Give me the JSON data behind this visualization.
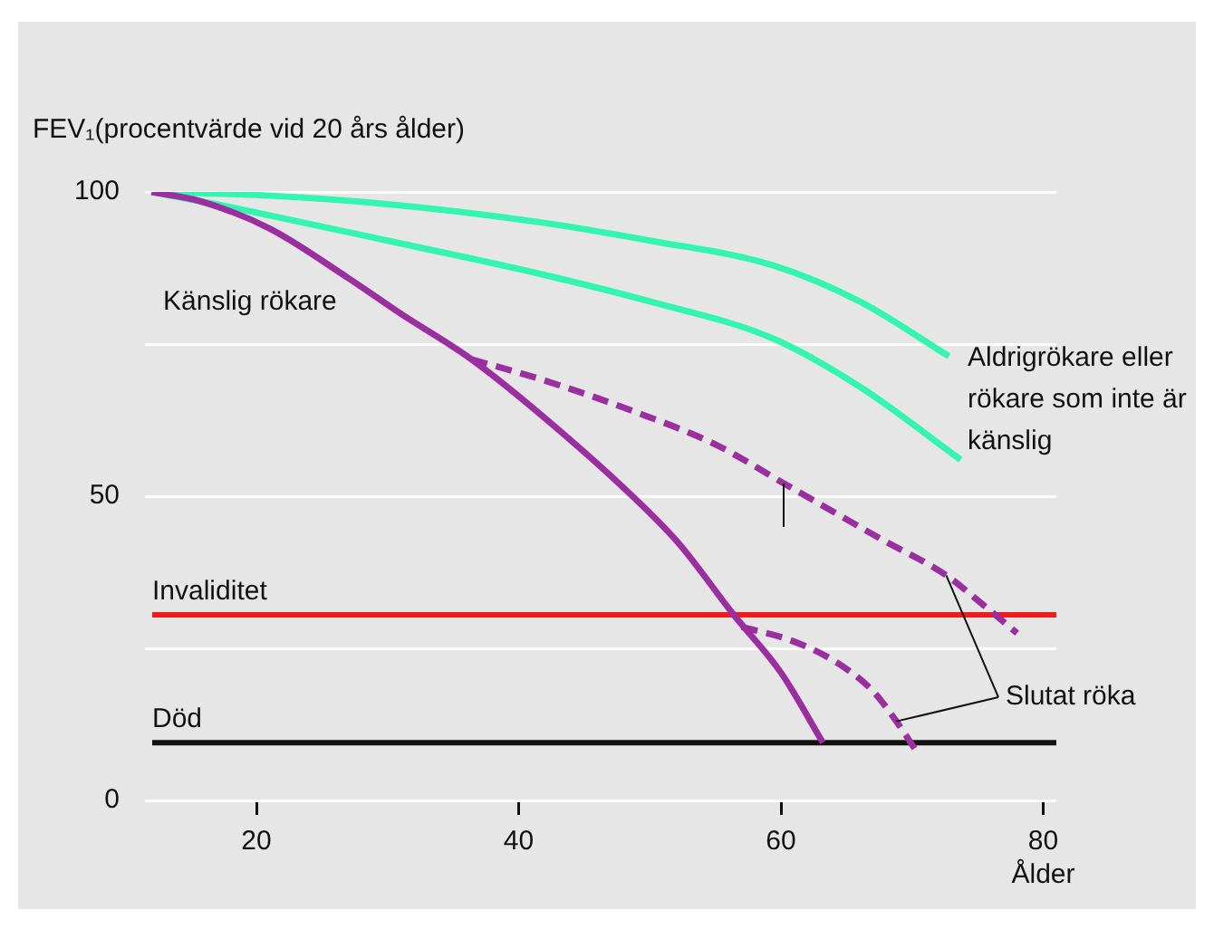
{
  "chart_data": {
    "type": "line",
    "ylabel": "FEV₁(procentvärde vid 20 års ålder)",
    "xlabel": "Ålder",
    "xlim": [
      11.5,
      81
    ],
    "xticks": [
      20,
      40,
      60,
      80
    ],
    "ylim": [
      0,
      100
    ],
    "yticks": [
      0,
      {
        "value": 25,
        "label": null
      },
      50,
      {
        "value": 75,
        "label": null
      },
      100
    ],
    "grid": "y",
    "legend": false,
    "marker": "none",
    "series": [
      {
        "color": "#33f5b0",
        "line_style": "solid",
        "x": [
          12,
          20,
          30,
          41.7,
          50,
          59.3,
          66,
          72.8
        ],
        "values": [
          100,
          99.5,
          98,
          95,
          92,
          88,
          82,
          73
        ]
      },
      {
        "color": "#33f5b0",
        "line_style": "solid",
        "x": [
          12,
          18,
          30,
          41.7,
          50,
          59.3,
          66,
          73.7
        ],
        "values": [
          100,
          97.5,
          92,
          86.5,
          82,
          76,
          68,
          56
        ]
      },
      {
        "color": "#9b2f9f",
        "line_style": "solid",
        "x": [
          12,
          15.7,
          21,
          26.9,
          31,
          36.4,
          43,
          49.4,
          52.3,
          56.4,
          60,
          63.2
        ],
        "values": [
          100,
          98.5,
          94,
          86,
          80,
          72.5,
          61,
          48.5,
          42,
          30.5,
          21,
          9.5
        ]
      },
      {
        "color": "#9b2f9f",
        "line_style": "dashed",
        "x": [
          36.4,
          42,
          48.7,
          55,
          60.3,
          67.6,
          72.6,
          75.5,
          78
        ],
        "values": [
          72.5,
          69,
          64,
          58.5,
          52,
          43,
          37,
          32,
          27.5
        ]
      },
      {
        "color": "#9b2f9f",
        "line_style": "dashed",
        "x": [
          57,
          60.5,
          64,
          67,
          68.8,
          70.2
        ],
        "values": [
          28.5,
          26.5,
          23,
          18,
          13,
          8.5
        ]
      }
    ],
    "ref_lines": [
      {
        "axis": "y",
        "value": 30.5,
        "label": "Invaliditet",
        "color": "#ee1c1c"
      },
      {
        "axis": "y",
        "value": 9.5,
        "label": "Död",
        "color": "#111111"
      }
    ],
    "annotations": [
      "Känslig rökare",
      "Aldrigrökare eller rökare som inte är känslig",
      {
        "text": "Slutat röka",
        "x": 72.6,
        "y": 37
      }
    ]
  }
}
